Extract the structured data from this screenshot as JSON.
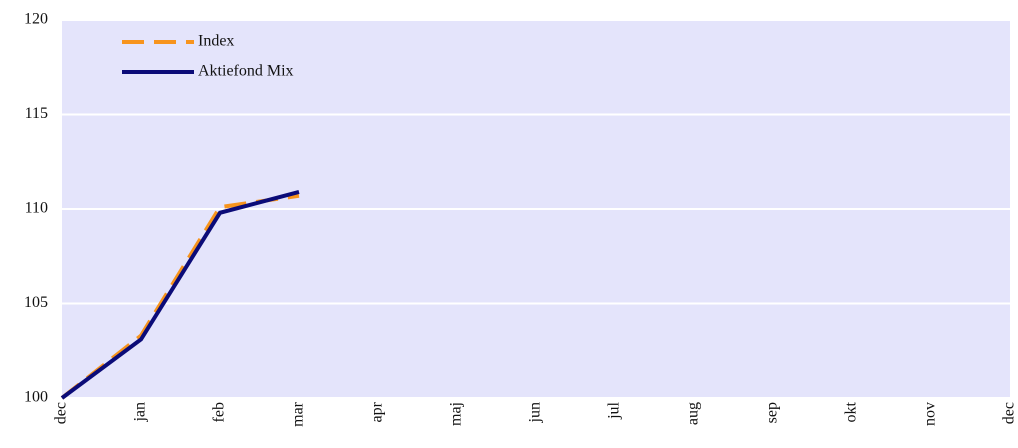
{
  "chart_data": {
    "type": "line",
    "categories": [
      "dec",
      "jan",
      "feb",
      "mar",
      "apr",
      "maj",
      "jun",
      "jul",
      "aug",
      "sep",
      "okt",
      "nov",
      "dec"
    ],
    "series": [
      {
        "name": "Index",
        "color": "#f7941d",
        "linestyle": "dashed",
        "values": [
          100,
          103.3,
          110.1,
          110.7,
          null,
          null,
          null,
          null,
          null,
          null,
          null,
          null,
          null
        ]
      },
      {
        "name": "Aktiefond Mix",
        "color": "#0b0b78",
        "linestyle": "solid",
        "values": [
          100,
          103.1,
          109.8,
          110.9,
          null,
          null,
          null,
          null,
          null,
          null,
          null,
          null,
          null
        ]
      }
    ],
    "ylim": [
      100,
      120
    ],
    "yticks": [
      100,
      105,
      110,
      115,
      120
    ],
    "grid": true,
    "background": "#e4e4fb",
    "legend": "upper left"
  }
}
